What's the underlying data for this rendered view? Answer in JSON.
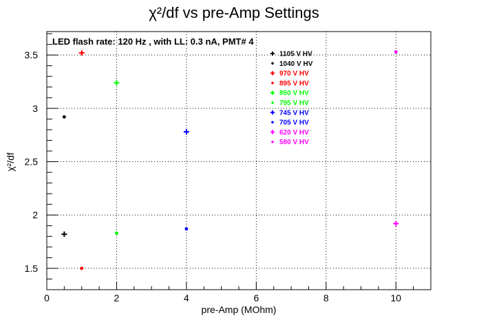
{
  "chart_data": {
    "type": "scatter",
    "title": "χ²/df vs pre-Amp Settings",
    "xlabel": "pre-Amp (MOhm)",
    "ylabel": "χ²/df",
    "xlim": [
      0,
      11
    ],
    "ylim": [
      1.3,
      3.72
    ],
    "x_ticks": [
      "0",
      "2",
      "4",
      "6",
      "8",
      "10"
    ],
    "y_ticks": [
      "1.5",
      "2",
      "2.5",
      "3",
      "3.5"
    ],
    "grid": true,
    "legend_position": "top-right",
    "annotation": "LED flash rate: 120 Hz , with LL: 0.3 nA, PMT# 4",
    "series": [
      {
        "name": "1105 V HV",
        "color": "#000000",
        "marker": "plus",
        "points": [
          [
            0.5,
            1.82
          ]
        ]
      },
      {
        "name": "1040 V HV",
        "color": "#000000",
        "marker": "star",
        "points": [
          [
            0.5,
            2.92
          ]
        ]
      },
      {
        "name": "970 V HV",
        "color": "#ff0000",
        "marker": "plus",
        "points": [
          [
            1.0,
            3.52
          ]
        ]
      },
      {
        "name": "895 V HV",
        "color": "#ff0000",
        "marker": "star",
        "points": [
          [
            1.0,
            1.5
          ]
        ]
      },
      {
        "name": "850 V HV",
        "color": "#00ff00",
        "marker": "plus",
        "points": [
          [
            2.0,
            3.24
          ]
        ]
      },
      {
        "name": "795 V HV",
        "color": "#00ff00",
        "marker": "star",
        "points": [
          [
            2.0,
            1.83
          ]
        ]
      },
      {
        "name": "745 V HV",
        "color": "#0000ff",
        "marker": "plus",
        "points": [
          [
            4.0,
            2.78
          ]
        ]
      },
      {
        "name": "705 V HV",
        "color": "#0000ff",
        "marker": "star",
        "points": [
          [
            4.0,
            1.87
          ]
        ]
      },
      {
        "name": "620 V HV",
        "color": "#ff00ff",
        "marker": "plus",
        "points": [
          [
            10.0,
            1.92
          ]
        ]
      },
      {
        "name": "580 V HV",
        "color": "#ff00ff",
        "marker": "star",
        "points": [
          [
            10.0,
            3.53
          ]
        ]
      }
    ]
  }
}
